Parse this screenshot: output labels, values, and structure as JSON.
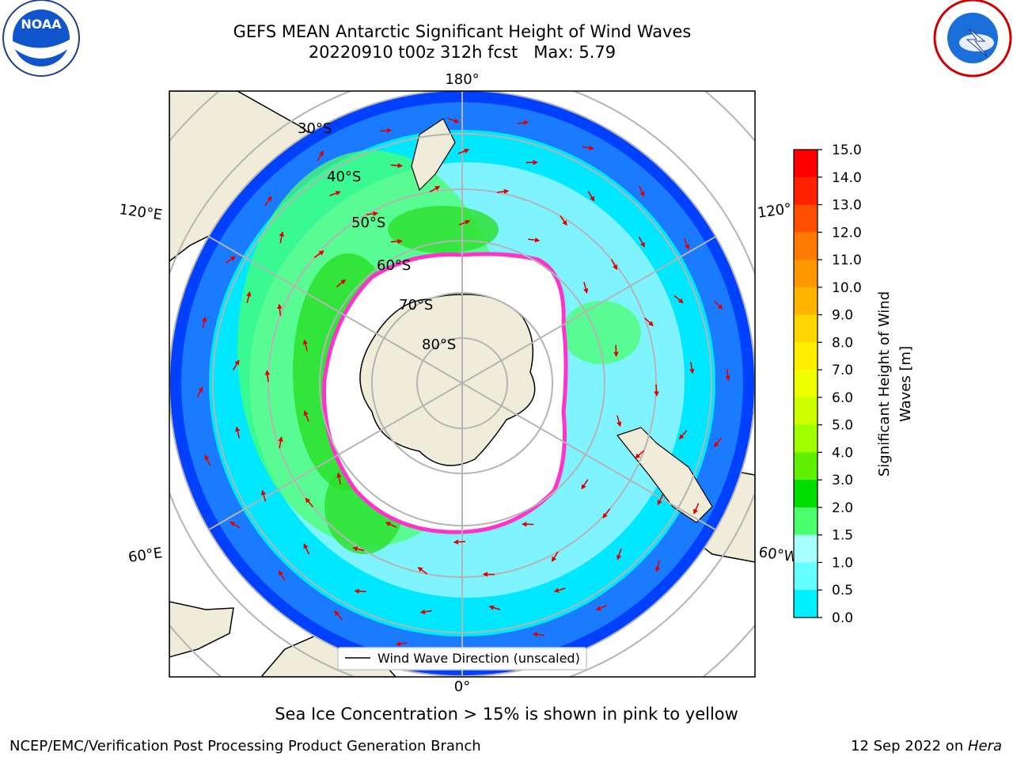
{
  "header": {
    "title_line1": "GEFS MEAN Antarctic Significant Height of Wind Waves",
    "title_line2": "20220910 t00z 312h fcst   Max: 5.79"
  },
  "logos": {
    "left": "NOAA",
    "right": "NATIONAL WEATHER SERVICE"
  },
  "map": {
    "meridian_labels": {
      "top": "180°",
      "bottom": "0°",
      "left_upper": "120°E",
      "left_lower": "60°E",
      "right_upper": "120°",
      "right_lower": "60°W"
    },
    "latitude_labels": [
      "30°S",
      "40°S",
      "50°S",
      "60°S",
      "70°S",
      "80°S"
    ],
    "legend": "Wind Wave Direction (unscaled)",
    "colors": {
      "land": "#efedd9",
      "ice": "#ffffff",
      "ice_edge": "#ff33cc",
      "arrow": "#e00000"
    }
  },
  "colorbar": {
    "label_line1": "Significant Height of Wind",
    "label_line2": "Waves [m]",
    "ticks": [
      "15.0",
      "14.0",
      "13.0",
      "12.0",
      "11.0",
      "10.0",
      "9.0",
      "8.0",
      "7.0",
      "6.0",
      "5.0",
      "4.0",
      "3.0",
      "2.0",
      "1.5",
      "1.0",
      "0.5",
      "0.0"
    ],
    "colors_top_to_bottom": [
      "#ff0000",
      "#ff2000",
      "#ff5000",
      "#ff7a00",
      "#ff9800",
      "#ffb400",
      "#ffd600",
      "#ffee00",
      "#f0ff00",
      "#ccff00",
      "#a0ff00",
      "#5ef000",
      "#00dd00",
      "#4cff6e",
      "#a8ffff",
      "#66ffff",
      "#00f0ff",
      "#0090ff",
      "#0000ff"
    ]
  },
  "note": "Sea Ice Concentration > 15% is shown in pink to yellow",
  "footer": {
    "left": "NCEP/EMC/Verification Post Processing Product Generation Branch",
    "date": "12 Sep 2022 on ",
    "host": "Hera"
  }
}
